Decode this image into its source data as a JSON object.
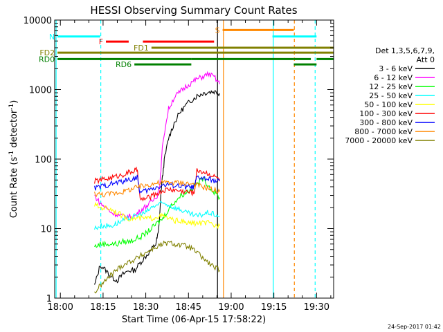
{
  "chart_data": {
    "type": "line",
    "title": "HESSI Observing Summary Count Rates",
    "xlabel": "Start Time (06-Apr-15 17:58:22)",
    "ylabel": "Count Rate (s⁻¹ detector⁻¹)",
    "ylabel_parts": {
      "main": "Count Rate (s",
      "sup1": "-1",
      "mid": " detector",
      "sup2": "-1",
      "end": ")"
    },
    "xlim": [
      -2,
      96
    ],
    "ylim": [
      1,
      10000
    ],
    "yscale": "log",
    "x_ticks": [
      {
        "v": 0,
        "label": "18:00"
      },
      {
        "v": 15,
        "label": "18:15"
      },
      {
        "v": 30,
        "label": "18:30"
      },
      {
        "v": 45,
        "label": "18:45"
      },
      {
        "v": 60,
        "label": "19:00"
      },
      {
        "v": 75,
        "label": "19:15"
      },
      {
        "v": 90,
        "label": "19:30"
      }
    ],
    "y_ticks": [
      {
        "v": 1,
        "label": "1"
      },
      {
        "v": 10,
        "label": "10"
      },
      {
        "v": 100,
        "label": "100"
      },
      {
        "v": 1000,
        "label": "1000"
      },
      {
        "v": 10000,
        "label": "10000"
      }
    ],
    "legend": {
      "header_lines": [
        "Det 1,3,5,6,7,9,",
        "Att 0"
      ],
      "placement": "right"
    },
    "series": [
      {
        "name": "3 - 6 keV",
        "color": "#000000",
        "points": [
          [
            12,
            1.5
          ],
          [
            14,
            3
          ],
          [
            16,
            2.5
          ],
          [
            18,
            2
          ],
          [
            20,
            1.8
          ],
          [
            22,
            2.2
          ],
          [
            24,
            2.5
          ],
          [
            26,
            2.5
          ],
          [
            28,
            3.2
          ],
          [
            30,
            4
          ],
          [
            32,
            5
          ],
          [
            33.5,
            6
          ],
          [
            34.5,
            9
          ],
          [
            35.5,
            40
          ],
          [
            36.5,
            95
          ],
          [
            38,
            200
          ],
          [
            40,
            330
          ],
          [
            42,
            470
          ],
          [
            44,
            590
          ],
          [
            46,
            700
          ],
          [
            48,
            810
          ],
          [
            50,
            880
          ],
          [
            52,
            920
          ],
          [
            54,
            940
          ],
          [
            56,
            880
          ]
        ]
      },
      {
        "name": "6 - 12 keV",
        "color": "#ff00ff",
        "points": [
          [
            12,
            30
          ],
          [
            14,
            23
          ],
          [
            16,
            20
          ],
          [
            18,
            17
          ],
          [
            20,
            16
          ],
          [
            22,
            15
          ],
          [
            24,
            15
          ],
          [
            26,
            15
          ],
          [
            28,
            18
          ],
          [
            30,
            21
          ],
          [
            32,
            24
          ],
          [
            34,
            30
          ],
          [
            35,
            45
          ],
          [
            36,
            180
          ],
          [
            38,
            520
          ],
          [
            40,
            780
          ],
          [
            42,
            920
          ],
          [
            44,
            1100
          ],
          [
            46,
            1250
          ],
          [
            48,
            1420
          ],
          [
            50,
            1530
          ],
          [
            52,
            1680
          ],
          [
            54,
            1520
          ],
          [
            56,
            1200
          ]
        ]
      },
      {
        "name": "12 - 25 keV",
        "color": "#00ff00",
        "points": [
          [
            12,
            5.5
          ],
          [
            14,
            6
          ],
          [
            16,
            6
          ],
          [
            18,
            6
          ],
          [
            20,
            6
          ],
          [
            22,
            6.5
          ],
          [
            24,
            6.5
          ],
          [
            26,
            7
          ],
          [
            28,
            7.5
          ],
          [
            30,
            8.5
          ],
          [
            32,
            10
          ],
          [
            34,
            12
          ],
          [
            36,
            14
          ],
          [
            38,
            19
          ],
          [
            40,
            24
          ],
          [
            42,
            29
          ],
          [
            44,
            33
          ],
          [
            46,
            37
          ],
          [
            48,
            44
          ],
          [
            50,
            53
          ],
          [
            52,
            42
          ],
          [
            54,
            33
          ],
          [
            56,
            28
          ]
        ]
      },
      {
        "name": "25 - 50 keV",
        "color": "#00ffff",
        "points": [
          [
            12,
            10
          ],
          [
            14,
            11
          ],
          [
            16,
            11
          ],
          [
            18,
            11
          ],
          [
            20,
            12
          ],
          [
            22,
            13
          ],
          [
            24,
            14
          ],
          [
            26,
            15
          ],
          [
            28,
            16
          ],
          [
            30,
            17
          ],
          [
            32,
            20
          ],
          [
            34,
            22
          ],
          [
            36,
            23
          ],
          [
            38,
            22
          ],
          [
            40,
            20
          ],
          [
            42,
            19
          ],
          [
            44,
            17
          ],
          [
            46,
            16
          ],
          [
            48,
            15
          ],
          [
            50,
            16
          ],
          [
            52,
            17
          ],
          [
            54,
            16
          ],
          [
            56,
            15
          ]
        ]
      },
      {
        "name": "50 - 100 keV",
        "color": "#ffff00",
        "points": [
          [
            12,
            22
          ],
          [
            14,
            20
          ],
          [
            16,
            20
          ],
          [
            18,
            19
          ],
          [
            20,
            17
          ],
          [
            22,
            15
          ],
          [
            24,
            14
          ],
          [
            26,
            14
          ],
          [
            28,
            14
          ],
          [
            30,
            14
          ],
          [
            32,
            14
          ],
          [
            34,
            15
          ],
          [
            36,
            15
          ],
          [
            38,
            14
          ],
          [
            40,
            13
          ],
          [
            42,
            13
          ],
          [
            44,
            12
          ],
          [
            46,
            12
          ],
          [
            48,
            12
          ],
          [
            50,
            12
          ],
          [
            52,
            12
          ],
          [
            54,
            11
          ],
          [
            56,
            11
          ]
        ]
      },
      {
        "name": "100 - 300 keV",
        "color": "#ff0000",
        "points": [
          [
            12,
            48
          ],
          [
            14,
            50
          ],
          [
            16,
            52
          ],
          [
            18,
            54
          ],
          [
            20,
            57
          ],
          [
            22,
            60
          ],
          [
            24,
            64
          ],
          [
            26,
            68
          ],
          [
            27,
            70
          ],
          [
            28,
            26
          ],
          [
            30,
            27
          ],
          [
            32,
            29
          ],
          [
            34,
            32
          ],
          [
            36,
            35
          ],
          [
            38,
            37
          ],
          [
            40,
            36
          ],
          [
            42,
            35
          ],
          [
            44,
            34
          ],
          [
            46,
            33
          ],
          [
            47,
            33
          ],
          [
            48,
            70
          ],
          [
            50,
            66
          ],
          [
            52,
            62
          ],
          [
            54,
            56
          ],
          [
            56,
            52
          ]
        ]
      },
      {
        "name": "300 - 800 keV",
        "color": "#0000ff",
        "points": [
          [
            12,
            38
          ],
          [
            14,
            40
          ],
          [
            16,
            42
          ],
          [
            18,
            44
          ],
          [
            20,
            46
          ],
          [
            22,
            48
          ],
          [
            24,
            50
          ],
          [
            26,
            53
          ],
          [
            27,
            55
          ],
          [
            28,
            33
          ],
          [
            30,
            35
          ],
          [
            32,
            37
          ],
          [
            34,
            40
          ],
          [
            36,
            42
          ],
          [
            38,
            43
          ],
          [
            40,
            42
          ],
          [
            42,
            41
          ],
          [
            44,
            40
          ],
          [
            46,
            39
          ],
          [
            47,
            39
          ],
          [
            48,
            55
          ],
          [
            50,
            53
          ],
          [
            52,
            51
          ],
          [
            54,
            49
          ],
          [
            56,
            48
          ]
        ]
      },
      {
        "name": "800 - 7000 keV",
        "color": "#ff8800",
        "points": [
          [
            12,
            32
          ],
          [
            14,
            31
          ],
          [
            16,
            31
          ],
          [
            18,
            32
          ],
          [
            20,
            33
          ],
          [
            22,
            34
          ],
          [
            24,
            36
          ],
          [
            26,
            38
          ],
          [
            28,
            40
          ],
          [
            30,
            42
          ],
          [
            32,
            44
          ],
          [
            34,
            45
          ],
          [
            36,
            46
          ],
          [
            38,
            46
          ],
          [
            40,
            46
          ],
          [
            42,
            46
          ],
          [
            44,
            45
          ],
          [
            46,
            44
          ],
          [
            48,
            42
          ],
          [
            50,
            40
          ],
          [
            52,
            38
          ],
          [
            54,
            36
          ],
          [
            56,
            34
          ]
        ]
      },
      {
        "name": "7000 - 20000 keV",
        "color": "#808000",
        "points": [
          [
            12,
            1.2
          ],
          [
            14,
            1.5
          ],
          [
            16,
            1.8
          ],
          [
            18,
            2.2
          ],
          [
            20,
            2.6
          ],
          [
            22,
            3
          ],
          [
            24,
            3.3
          ],
          [
            26,
            3.6
          ],
          [
            28,
            4
          ],
          [
            30,
            4.5
          ],
          [
            32,
            5
          ],
          [
            34,
            5.5
          ],
          [
            36,
            6
          ],
          [
            38,
            6.2
          ],
          [
            40,
            6
          ],
          [
            42,
            5.8
          ],
          [
            44,
            5.6
          ],
          [
            46,
            5.2
          ],
          [
            48,
            4.5
          ],
          [
            50,
            3.8
          ],
          [
            52,
            3.2
          ],
          [
            54,
            2.8
          ],
          [
            56,
            2.5
          ]
        ]
      }
    ],
    "flags": [
      {
        "label": "N",
        "label_color": "#00ffff",
        "color": "#00ffff",
        "level": 5800,
        "segments": [
          [
            -1,
            14
          ],
          [
            74.5,
            90
          ]
        ]
      },
      {
        "label": "F",
        "label_color": "#ff0000",
        "color": "#ff0000",
        "level": 4900,
        "segments": [
          [
            16,
            24
          ],
          [
            29,
            54
          ]
        ]
      },
      {
        "label": "S",
        "label_color": "#ff8800",
        "color": "#ff8800",
        "level": 7200,
        "segments": [
          [
            57,
            82
          ]
        ]
      },
      {
        "label": "FD1",
        "label_color": "#808000",
        "color": "#808000",
        "level": 4000,
        "segments": [
          [
            32,
            96
          ]
        ]
      },
      {
        "label": "FD2",
        "label_color": "#808000",
        "color": "#808000",
        "level": 3400,
        "segments": [
          [
            -1,
            96
          ]
        ]
      },
      {
        "label": "RD0",
        "label_color": "#008000",
        "color": "#008000",
        "level": 2750,
        "segments": [
          [
            -1,
            46
          ],
          [
            46,
            82
          ],
          [
            82,
            88
          ],
          [
            90,
            96
          ]
        ]
      },
      {
        "label": "RD6",
        "label_color": "#008000",
        "color": "#008000",
        "level": 2300,
        "segments": [
          [
            26,
            46
          ],
          [
            82,
            90
          ]
        ]
      }
    ],
    "vlines": [
      {
        "x": -1.5,
        "color": "#00ffff",
        "dash": false
      },
      {
        "x": 14.2,
        "color": "#00ffff",
        "dash": true
      },
      {
        "x": 57.3,
        "color": "#ff8800",
        "dash": false
      },
      {
        "x": 74.8,
        "color": "#00ffff",
        "dash": false
      },
      {
        "x": 82.2,
        "color": "#ff8800",
        "dash": true
      },
      {
        "x": 89.5,
        "color": "#00ffff",
        "dash": true
      },
      {
        "x": 55.2,
        "color": "#000000",
        "dash": false
      }
    ],
    "grid": false
  },
  "footer": {
    "timestamp": "24-Sep-2017 01:42"
  }
}
